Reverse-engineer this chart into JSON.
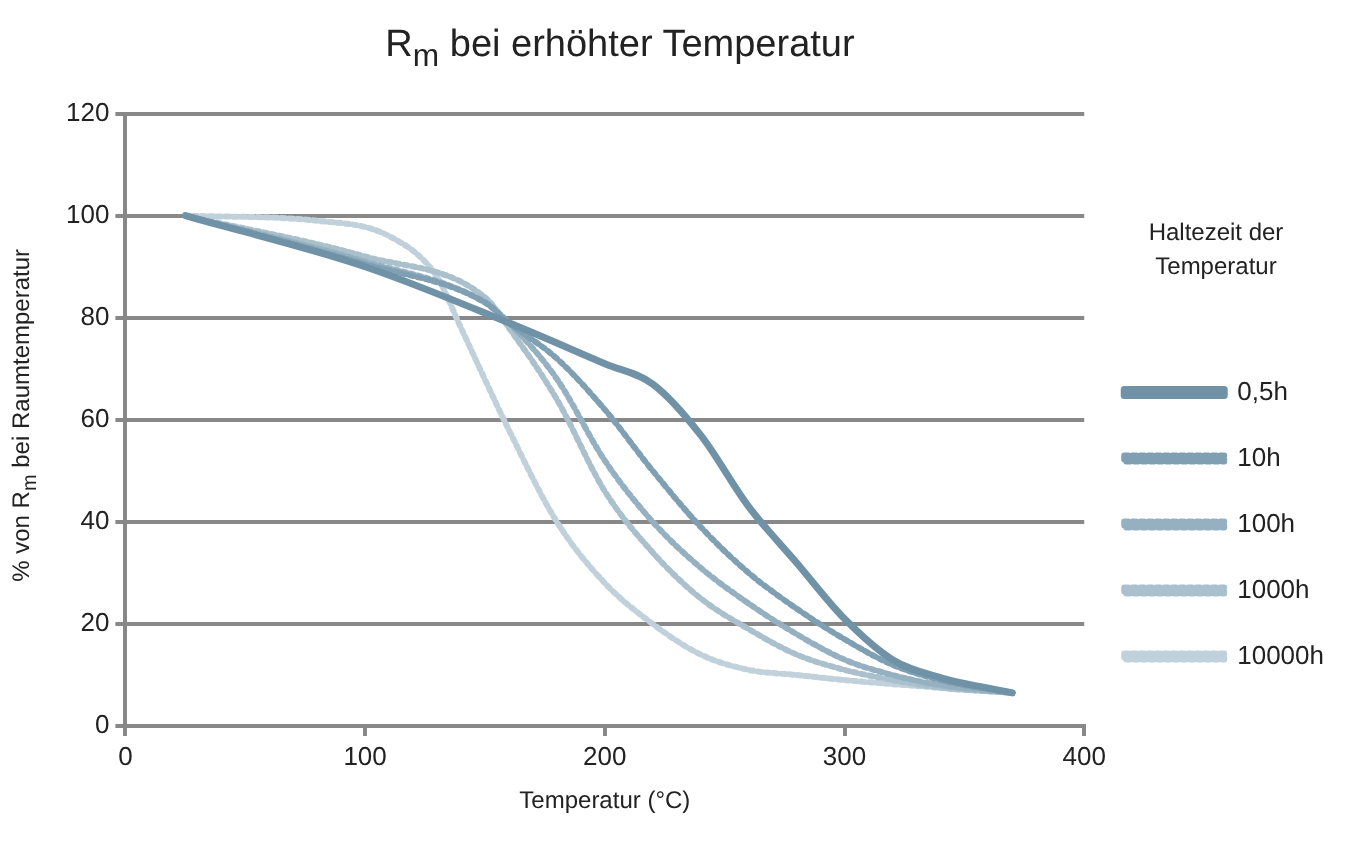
{
  "chart_data": {
    "type": "line",
    "title": "R$_{m}$ bei erhöhter Temperatur",
    "xlabel": "Temperatur (°C)",
    "ylabel": "% von R$_{m}$ bei Raumtemperatur",
    "legend_title": "Haltezeit der Temperatur",
    "legend": "right",
    "grid": "y",
    "marker": "none",
    "xlim": [
      0,
      400
    ],
    "xticks": [
      0,
      100,
      200,
      300,
      400
    ],
    "ylim": [
      0,
      120
    ],
    "yticks": [
      0,
      20,
      40,
      60,
      80,
      100,
      120
    ],
    "series": [
      {
        "name": "0,5h",
        "color": "#6f92a6",
        "line_style": "solid",
        "x": [
          25,
          100,
          160,
          200,
          220,
          240,
          260,
          280,
          300,
          320,
          340,
          370
        ],
        "values": [
          100,
          90,
          79,
          71,
          67,
          57,
          43,
          32,
          21,
          13,
          9.5,
          6.5
        ]
      },
      {
        "name": "10h",
        "color": "#7f9fb2",
        "line_style": "dotted",
        "x": [
          25,
          100,
          150,
          160,
          180,
          200,
          220,
          240,
          260,
          280,
          300,
          320,
          340,
          370
        ],
        "values": [
          100,
          90.5,
          83,
          79,
          72,
          62,
          50,
          39,
          30,
          23,
          17,
          12,
          9,
          6.5
        ]
      },
      {
        "name": "100h",
        "color": "#95b0c1",
        "line_style": "dotted",
        "x": [
          25,
          100,
          150,
          160,
          180,
          200,
          220,
          240,
          260,
          280,
          300,
          320,
          340,
          370
        ],
        "values": [
          100,
          91,
          83,
          79,
          68,
          52,
          40,
          31,
          24,
          18,
          13,
          10,
          8,
          6.5
        ]
      },
      {
        "name": "1000h",
        "color": "#aac0cd",
        "line_style": "dotted",
        "x": [
          25,
          100,
          150,
          160,
          180,
          200,
          220,
          240,
          260,
          280,
          300,
          320,
          340,
          370
        ],
        "values": [
          100,
          92,
          84,
          78,
          64,
          46,
          34,
          25,
          19,
          14,
          11,
          9,
          7.5,
          6.5
        ]
      },
      {
        "name": "10000h",
        "color": "#c0d1db",
        "line_style": "dotted",
        "x": [
          25,
          80,
          110,
          130,
          140,
          160,
          180,
          200,
          220,
          240,
          260,
          280,
          300,
          340,
          370
        ],
        "values": [
          100,
          99,
          96,
          88,
          78,
          58,
          40,
          28,
          20,
          14,
          11,
          10,
          9,
          7.5,
          6.5
        ]
      }
    ]
  }
}
